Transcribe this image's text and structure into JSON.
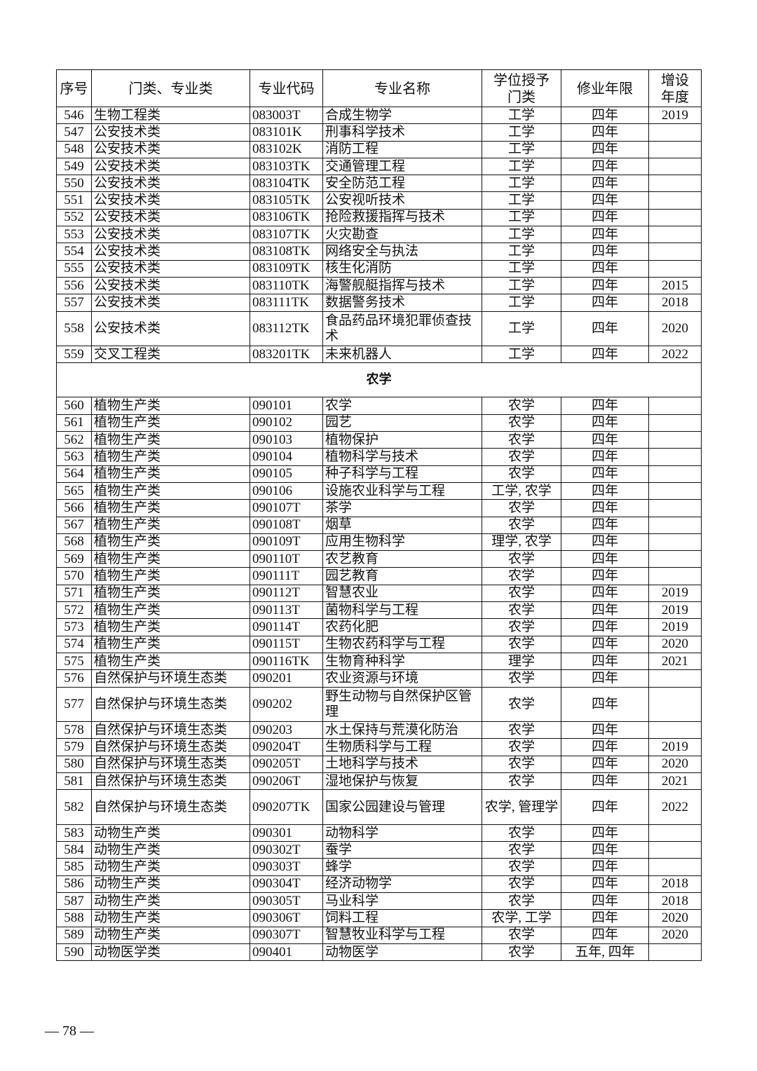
{
  "table": {
    "headers": [
      "序号",
      "门类、专业类",
      "专业代码",
      "专业名称",
      "学位授予门类",
      "修业年限",
      "增设年度"
    ],
    "rows_a": [
      [
        "546",
        "生物工程类",
        "083003T",
        "合成生物学",
        "工学",
        "四年",
        "2019"
      ],
      [
        "547",
        "公安技术类",
        "083101K",
        "刑事科学技术",
        "工学",
        "四年",
        ""
      ],
      [
        "548",
        "公安技术类",
        "083102K",
        "消防工程",
        "工学",
        "四年",
        ""
      ],
      [
        "549",
        "公安技术类",
        "083103TK",
        "交通管理工程",
        "工学",
        "四年",
        ""
      ],
      [
        "550",
        "公安技术类",
        "083104TK",
        "安全防范工程",
        "工学",
        "四年",
        ""
      ],
      [
        "551",
        "公安技术类",
        "083105TK",
        "公安视听技术",
        "工学",
        "四年",
        ""
      ],
      [
        "552",
        "公安技术类",
        "083106TK",
        "抢险救援指挥与技术",
        "工学",
        "四年",
        ""
      ],
      [
        "553",
        "公安技术类",
        "083107TK",
        "火灾勘查",
        "工学",
        "四年",
        ""
      ],
      [
        "554",
        "公安技术类",
        "083108TK",
        "网络安全与执法",
        "工学",
        "四年",
        ""
      ],
      [
        "555",
        "公安技术类",
        "083109TK",
        "核生化消防",
        "工学",
        "四年",
        ""
      ],
      [
        "556",
        "公安技术类",
        "083110TK",
        "海警舰艇指挥与技术",
        "工学",
        "四年",
        "2015"
      ],
      [
        "557",
        "公安技术类",
        "083111TK",
        "数据警务技术",
        "工学",
        "四年",
        "2018"
      ],
      [
        "558",
        "公安技术类",
        "083112TK",
        "食品药品环境犯罪侦查技术",
        "工学",
        "四年",
        "2020"
      ],
      [
        "559",
        "交叉工程类",
        "083201TK",
        "未来机器人",
        "工学",
        "四年",
        "2022"
      ]
    ],
    "section_title": "农学",
    "rows_b": [
      [
        "560",
        "植物生产类",
        "090101",
        "农学",
        "农学",
        "四年",
        ""
      ],
      [
        "561",
        "植物生产类",
        "090102",
        "园艺",
        "农学",
        "四年",
        ""
      ],
      [
        "562",
        "植物生产类",
        "090103",
        "植物保护",
        "农学",
        "四年",
        ""
      ],
      [
        "563",
        "植物生产类",
        "090104",
        "植物科学与技术",
        "农学",
        "四年",
        ""
      ],
      [
        "564",
        "植物生产类",
        "090105",
        "种子科学与工程",
        "农学",
        "四年",
        ""
      ],
      [
        "565",
        "植物生产类",
        "090106",
        "设施农业科学与工程",
        "工学, 农学",
        "四年",
        ""
      ],
      [
        "566",
        "植物生产类",
        "090107T",
        "茶学",
        "农学",
        "四年",
        ""
      ],
      [
        "567",
        "植物生产类",
        "090108T",
        "烟草",
        "农学",
        "四年",
        ""
      ],
      [
        "568",
        "植物生产类",
        "090109T",
        "应用生物科学",
        "理学, 农学",
        "四年",
        ""
      ],
      [
        "569",
        "植物生产类",
        "090110T",
        "农艺教育",
        "农学",
        "四年",
        ""
      ],
      [
        "570",
        "植物生产类",
        "090111T",
        "园艺教育",
        "农学",
        "四年",
        ""
      ],
      [
        "571",
        "植物生产类",
        "090112T",
        "智慧农业",
        "农学",
        "四年",
        "2019"
      ],
      [
        "572",
        "植物生产类",
        "090113T",
        "菌物科学与工程",
        "农学",
        "四年",
        "2019"
      ],
      [
        "573",
        "植物生产类",
        "090114T",
        "农药化肥",
        "农学",
        "四年",
        "2019"
      ],
      [
        "574",
        "植物生产类",
        "090115T",
        "生物农药科学与工程",
        "农学",
        "四年",
        "2020"
      ],
      [
        "575",
        "植物生产类",
        "090116TK",
        "生物育种科学",
        "理学",
        "四年",
        "2021"
      ],
      [
        "576",
        "自然保护与环境生态类",
        "090201",
        "农业资源与环境",
        "农学",
        "四年",
        ""
      ],
      [
        "577",
        "自然保护与环境生态类",
        "090202",
        "野生动物与自然保护区管理",
        "农学",
        "四年",
        ""
      ],
      [
        "578",
        "自然保护与环境生态类",
        "090203",
        "水土保持与荒漠化防治",
        "农学",
        "四年",
        ""
      ],
      [
        "579",
        "自然保护与环境生态类",
        "090204T",
        "生物质科学与工程",
        "农学",
        "四年",
        "2019"
      ],
      [
        "580",
        "自然保护与环境生态类",
        "090205T",
        "土地科学与技术",
        "农学",
        "四年",
        "2020"
      ],
      [
        "581",
        "自然保护与环境生态类",
        "090206T",
        "湿地保护与恢复",
        "农学",
        "四年",
        "2021"
      ],
      [
        "582",
        "自然保护与环境生态类",
        "090207TK",
        "国家公园建设与管理",
        "农学, 管理学",
        "四年",
        "2022"
      ],
      [
        "583",
        "动物生产类",
        "090301",
        "动物科学",
        "农学",
        "四年",
        ""
      ],
      [
        "584",
        "动物生产类",
        "090302T",
        "蚕学",
        "农学",
        "四年",
        ""
      ],
      [
        "585",
        "动物生产类",
        "090303T",
        "蜂学",
        "农学",
        "四年",
        ""
      ],
      [
        "586",
        "动物生产类",
        "090304T",
        "经济动物学",
        "农学",
        "四年",
        "2018"
      ],
      [
        "587",
        "动物生产类",
        "090305T",
        "马业科学",
        "农学",
        "四年",
        "2018"
      ],
      [
        "588",
        "动物生产类",
        "090306T",
        "饲料工程",
        "农学, 工学",
        "四年",
        "2020"
      ],
      [
        "589",
        "动物生产类",
        "090307T",
        "智慧牧业科学与工程",
        "农学",
        "四年",
        "2020"
      ],
      [
        "590",
        "动物医学类",
        "090401",
        "动物医学",
        "农学",
        "五年, 四年",
        ""
      ]
    ],
    "double_rows": [
      "558",
      "577",
      "582"
    ]
  },
  "page_number": "— 78 —"
}
